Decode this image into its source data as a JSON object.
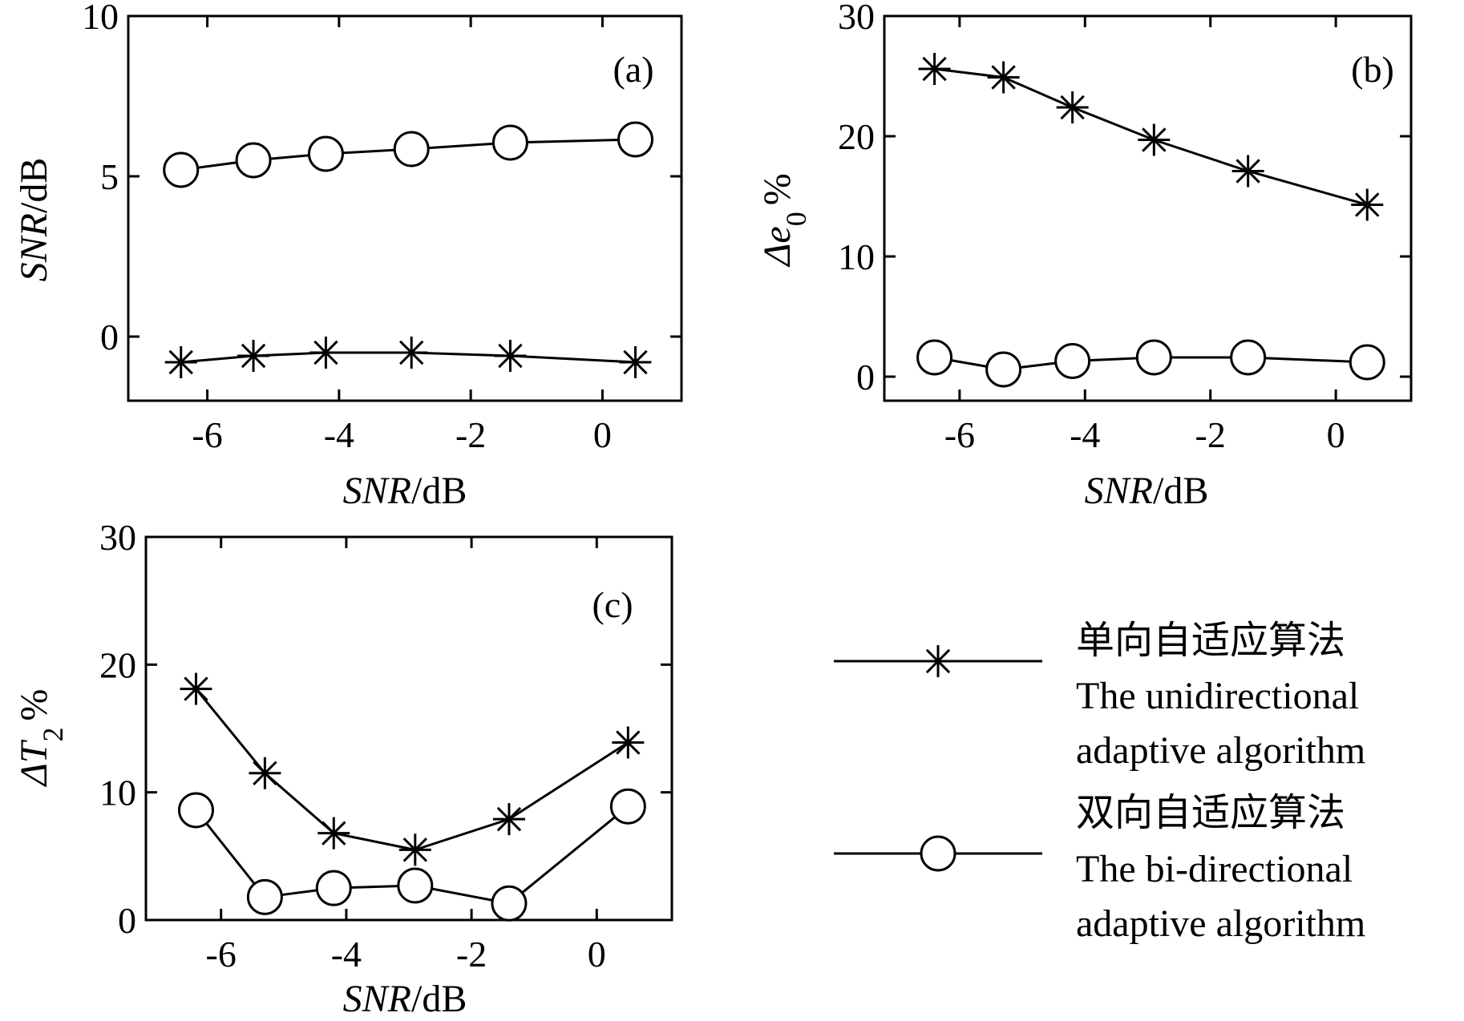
{
  "chart_data": [
    {
      "type": "line",
      "panel_label": "(a)",
      "xlabel": {
        "italic": "SNR",
        "rest": "/dB"
      },
      "ylabel": {
        "italic": "SNR",
        "rest": "/dB"
      },
      "xlim": [
        -7.2,
        1.2
      ],
      "ylim": [
        -2,
        10
      ],
      "xticks": [
        -6,
        -4,
        -2,
        0
      ],
      "yticks": [
        0,
        5,
        10
      ],
      "xticklabels": [
        "-6",
        "-4",
        "-2",
        "0"
      ],
      "yticklabels": [
        "0",
        "5",
        "10"
      ],
      "series": [
        {
          "marker": "star",
          "x": [
            -6.4,
            -5.3,
            -4.2,
            -2.9,
            -1.4,
            0.5
          ],
          "y": [
            -0.8,
            -0.6,
            -0.5,
            -0.5,
            -0.6,
            -0.8
          ]
        },
        {
          "marker": "circle",
          "x": [
            -6.4,
            -5.3,
            -4.2,
            -2.9,
            -1.4,
            0.5
          ],
          "y": [
            5.2,
            5.5,
            5.7,
            5.85,
            6.05,
            6.15
          ]
        }
      ]
    },
    {
      "type": "line",
      "panel_label": "(b)",
      "xlabel": {
        "italic": "SNR",
        "rest": "/dB"
      },
      "ylabel": {
        "italic": "Δe",
        "sub": "0",
        "rest": "%"
      },
      "xlim": [
        -7.2,
        1.2
      ],
      "ylim": [
        -2,
        30
      ],
      "xticks": [
        -6,
        -4,
        -2,
        0
      ],
      "yticks": [
        0,
        10,
        20,
        30
      ],
      "xticklabels": [
        "-6",
        "-4",
        "-2",
        "0"
      ],
      "yticklabels": [
        "0",
        "10",
        "20",
        "30"
      ],
      "series": [
        {
          "marker": "star",
          "x": [
            -6.4,
            -5.3,
            -4.2,
            -2.9,
            -1.4,
            0.5
          ],
          "y": [
            25.6,
            24.9,
            22.4,
            19.7,
            17.1,
            14.3
          ]
        },
        {
          "marker": "circle",
          "x": [
            -6.4,
            -5.3,
            -4.2,
            -2.9,
            -1.4,
            0.5
          ],
          "y": [
            1.6,
            0.6,
            1.3,
            1.6,
            1.6,
            1.2
          ]
        }
      ]
    },
    {
      "type": "line",
      "panel_label": "(c)",
      "xlabel": {
        "italic": "SNR",
        "rest": "/dB"
      },
      "ylabel": {
        "italic": "ΔT",
        "sub": "2",
        "rest": "%"
      },
      "xlim": [
        -7.2,
        1.2
      ],
      "ylim": [
        0,
        30
      ],
      "xticks": [
        -6,
        -4,
        -2,
        0
      ],
      "yticks": [
        0,
        10,
        20,
        30
      ],
      "xticklabels": [
        "-6",
        "-4",
        "-2",
        "0"
      ],
      "yticklabels": [
        "0",
        "10",
        "20",
        "30"
      ],
      "series": [
        {
          "marker": "star",
          "x": [
            -6.4,
            -5.3,
            -4.2,
            -2.9,
            -1.4,
            0.5
          ],
          "y": [
            18.1,
            11.5,
            6.8,
            5.5,
            7.9,
            13.9
          ]
        },
        {
          "marker": "circle",
          "x": [
            -6.4,
            -5.3,
            -4.2,
            -2.9,
            -1.4,
            0.5
          ],
          "y": [
            8.6,
            1.8,
            2.5,
            2.7,
            1.3,
            8.9
          ]
        }
      ]
    }
  ],
  "legend": [
    {
      "marker": "star",
      "lines": [
        "单向自适应算法",
        "The unidirectional",
        "adaptive algorithm"
      ]
    },
    {
      "marker": "circle",
      "lines": [
        "双向自适应算法",
        "The bi-directional",
        "adaptive algorithm"
      ]
    }
  ]
}
